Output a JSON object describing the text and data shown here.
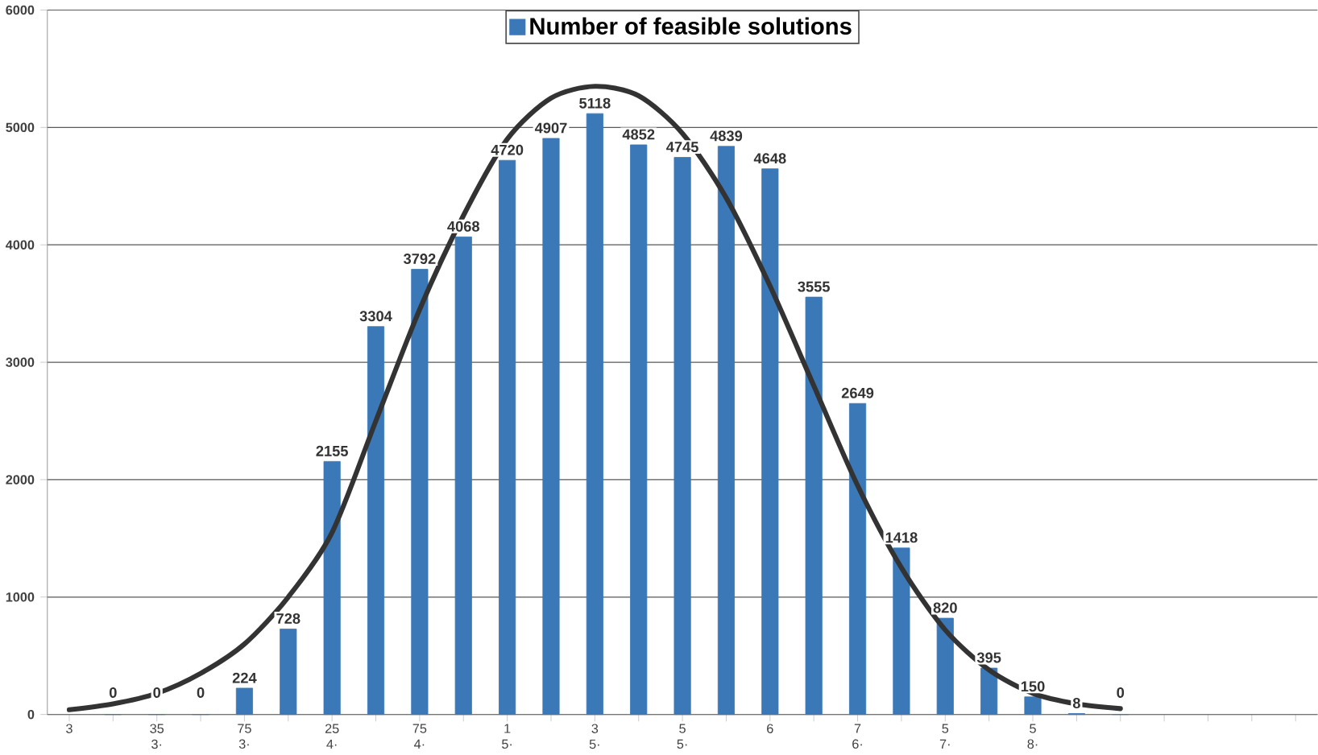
{
  "chart_data": {
    "type": "bar",
    "categories": [
      "3",
      null,
      "35 3·",
      null,
      "75 3·",
      null,
      "25 4·",
      null,
      "75 4·",
      null,
      "1 5·",
      null,
      "3 5·",
      null,
      "5 5·",
      null,
      "6",
      null,
      "7 6·",
      null,
      "5 7·",
      null,
      "5 8·",
      null,
      null,
      null,
      null,
      null,
      null
    ],
    "series": [
      {
        "name": "Number of feasible solutions",
        "color": "#3a78b8",
        "values": [
          null,
          0,
          0,
          0,
          224,
          728,
          2155,
          3304,
          3792,
          4068,
          4720,
          4907,
          5118,
          4852,
          4745,
          4839,
          4648,
          3555,
          2649,
          1418,
          820,
          395,
          150,
          8,
          0,
          null,
          null,
          null,
          null
        ],
        "value_labels": [
          null,
          "0",
          "0",
          "0",
          "224",
          "728",
          "2155",
          "3304",
          "3792",
          "4068",
          "4720",
          "4907",
          "5118",
          "4852",
          "4745",
          "4839",
          "4648",
          "3555",
          "2649",
          "1418",
          "820",
          "395",
          "150",
          "8",
          "0",
          null,
          null,
          null,
          null
        ]
      },
      {
        "type": "line",
        "color": "#333333",
        "values": [
          40,
          90,
          180,
          350,
          600,
          1000,
          1550,
          2500,
          3450,
          4250,
          4900,
          5250,
          5350,
          5270,
          4950,
          4400,
          3650,
          2800,
          1950,
          1250,
          720,
          380,
          180,
          90,
          50,
          null,
          null,
          null,
          null
        ]
      }
    ],
    "ylim": [
      0,
      6000
    ],
    "yticks": [
      0,
      1000,
      2000,
      3000,
      4000,
      5000,
      6000
    ],
    "grid": "y",
    "legend": "top"
  }
}
